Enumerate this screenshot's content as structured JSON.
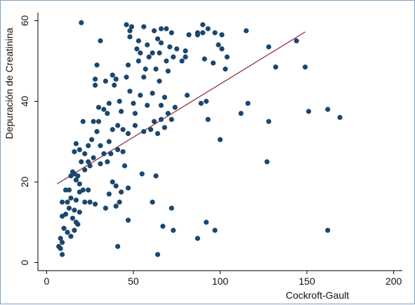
{
  "chart_data": {
    "type": "scatter",
    "title": "",
    "xlabel": "Cockroft-Gault",
    "ylabel": "Depuración de Creatinina",
    "xlim": [
      -5,
      205
    ],
    "ylim": [
      -2,
      62
    ],
    "xticks": [
      0,
      50,
      100,
      150,
      200
    ],
    "yticks": [
      0,
      20,
      40,
      60
    ],
    "grid": false,
    "legend": "none",
    "colors": {
      "marker": "#1a476f",
      "fit_line": "#90353b",
      "frame": "#7f9fbf"
    },
    "series": [
      {
        "name": "",
        "kind": "points",
        "points": [
          [
            20,
            59.5
          ],
          [
            46,
            59
          ],
          [
            49,
            58.5
          ],
          [
            56,
            58.5
          ],
          [
            66,
            58
          ],
          [
            48,
            57.5
          ],
          [
            62,
            57.5
          ],
          [
            69,
            58
          ],
          [
            72,
            57
          ],
          [
            82,
            56.5
          ],
          [
            87,
            57
          ],
          [
            90,
            57
          ],
          [
            90,
            59
          ],
          [
            93,
            58
          ],
          [
            97,
            57
          ],
          [
            101,
            56.5
          ],
          [
            115,
            57.5
          ],
          [
            31,
            55
          ],
          [
            48,
            56
          ],
          [
            53,
            55
          ],
          [
            58,
            54
          ],
          [
            64,
            55.5
          ],
          [
            66,
            54.5
          ],
          [
            71,
            53.5
          ],
          [
            75,
            53
          ],
          [
            80,
            52.5
          ],
          [
            87,
            56.5
          ],
          [
            99,
            54
          ],
          [
            104,
            51
          ],
          [
            128,
            53.5
          ],
          [
            144,
            55
          ],
          [
            52,
            53
          ],
          [
            54,
            52
          ],
          [
            59,
            51
          ],
          [
            61,
            52
          ],
          [
            65,
            52
          ],
          [
            69,
            50
          ],
          [
            73,
            51
          ],
          [
            78,
            50
          ],
          [
            80,
            51
          ],
          [
            91,
            50.5
          ],
          [
            96,
            49.5
          ],
          [
            101,
            53
          ],
          [
            103,
            48
          ],
          [
            132,
            48.5
          ],
          [
            149,
            48.5
          ],
          [
            29,
            49
          ],
          [
            47,
            49
          ],
          [
            53,
            50
          ],
          [
            57,
            48
          ],
          [
            63,
            48
          ],
          [
            70,
            47.5
          ],
          [
            38,
            46.5
          ],
          [
            40,
            45.5
          ],
          [
            46,
            46
          ],
          [
            56,
            46
          ],
          [
            65,
            45
          ],
          [
            28,
            45.5
          ],
          [
            34,
            45
          ],
          [
            28,
            44
          ],
          [
            39,
            44
          ],
          [
            48,
            42.5
          ],
          [
            54,
            41.5
          ],
          [
            61,
            42
          ],
          [
            68,
            41
          ],
          [
            81,
            41.5
          ],
          [
            36,
            39.5
          ],
          [
            42,
            40
          ],
          [
            50,
            39.5
          ],
          [
            58,
            39
          ],
          [
            66,
            39
          ],
          [
            74,
            38.5
          ],
          [
            89,
            39.5
          ],
          [
            92,
            40
          ],
          [
            30,
            38.5
          ],
          [
            33,
            38
          ],
          [
            35,
            37
          ],
          [
            43,
            37.5
          ],
          [
            51,
            37
          ],
          [
            70,
            37
          ],
          [
            112,
            37
          ],
          [
            116,
            39.5
          ],
          [
            151,
            37.5
          ],
          [
            162,
            38
          ],
          [
            169,
            36
          ],
          [
            21,
            35
          ],
          [
            27,
            35
          ],
          [
            30,
            35
          ],
          [
            41,
            34
          ],
          [
            51,
            34
          ],
          [
            60,
            33
          ],
          [
            62,
            35
          ],
          [
            66,
            35.5
          ],
          [
            72,
            35.5
          ],
          [
            93,
            35.5
          ],
          [
            128,
            35
          ],
          [
            38,
            33
          ],
          [
            44,
            33
          ],
          [
            56,
            32.5
          ],
          [
            64,
            32
          ],
          [
            68,
            33.5
          ],
          [
            47,
            32
          ],
          [
            29,
            32.5
          ],
          [
            26,
            30.5
          ],
          [
            36,
            30
          ],
          [
            24,
            29
          ],
          [
            31,
            29
          ],
          [
            41,
            28
          ],
          [
            44,
            27.5
          ],
          [
            33,
            27
          ],
          [
            37,
            27
          ],
          [
            22,
            27
          ],
          [
            27,
            26
          ],
          [
            17,
            29.5
          ],
          [
            16,
            27.5
          ],
          [
            19,
            28
          ],
          [
            100,
            30.5
          ],
          [
            35,
            25
          ],
          [
            31,
            24.5
          ],
          [
            25,
            24
          ],
          [
            24,
            25
          ],
          [
            20,
            25
          ],
          [
            15,
            22.5
          ],
          [
            22,
            23
          ],
          [
            18,
            21.5
          ],
          [
            14,
            21.5
          ],
          [
            16,
            22
          ],
          [
            45,
            24
          ],
          [
            55,
            22
          ],
          [
            63,
            21.5
          ],
          [
            127,
            25
          ],
          [
            17,
            20.5
          ],
          [
            19,
            19.5
          ],
          [
            13,
            18
          ],
          [
            21,
            18
          ],
          [
            24,
            18
          ],
          [
            38,
            20
          ],
          [
            40,
            19
          ],
          [
            43,
            17.5
          ],
          [
            47,
            18.5
          ],
          [
            19,
            17.5
          ],
          [
            11,
            18
          ],
          [
            36,
            17
          ],
          [
            14,
            16
          ],
          [
            17,
            15.5
          ],
          [
            22,
            15
          ],
          [
            25,
            15
          ],
          [
            28,
            14.5
          ],
          [
            42,
            15
          ],
          [
            12,
            15
          ],
          [
            9,
            15
          ],
          [
            13,
            13.5
          ],
          [
            16,
            13
          ],
          [
            19,
            12.5
          ],
          [
            34,
            13.5
          ],
          [
            40,
            14
          ],
          [
            61,
            15
          ],
          [
            72,
            13.5
          ],
          [
            11,
            12
          ],
          [
            15,
            11
          ],
          [
            9,
            11.5
          ],
          [
            17,
            10
          ],
          [
            18,
            9.5
          ],
          [
            16,
            8
          ],
          [
            10,
            8.5
          ],
          [
            12,
            7.5
          ],
          [
            14,
            6.5
          ],
          [
            8,
            6
          ],
          [
            9,
            5
          ],
          [
            7,
            4
          ],
          [
            8,
            3.5
          ],
          [
            9,
            2
          ],
          [
            47,
            10.5
          ],
          [
            67,
            9
          ],
          [
            73,
            8
          ],
          [
            92,
            10
          ],
          [
            97,
            8
          ],
          [
            162,
            8
          ],
          [
            87,
            6
          ],
          [
            41,
            4
          ],
          [
            64,
            2
          ]
        ]
      },
      {
        "name": "",
        "kind": "fit_line",
        "points": [
          [
            6,
            19.5
          ],
          [
            149,
            57.2
          ]
        ]
      }
    ]
  }
}
